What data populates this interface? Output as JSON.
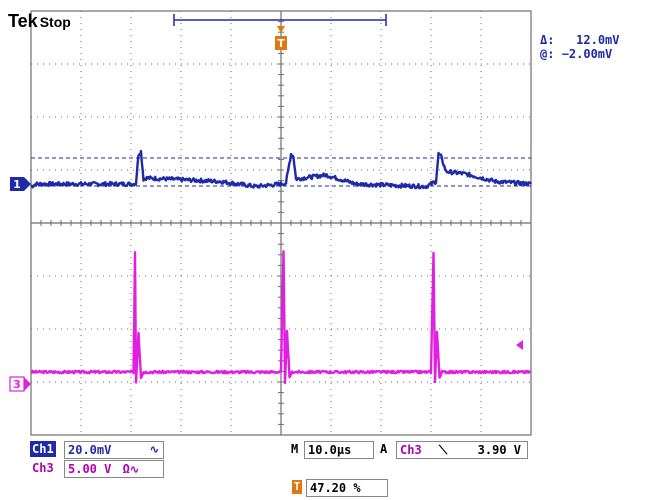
{
  "header": {
    "brand": "Tek",
    "status": "Stop"
  },
  "cursor_readout": {
    "delta_label": "Δ:",
    "delta_value": "12.0mV",
    "at_label": "@:",
    "at_value": "−2.00mV"
  },
  "markers": {
    "ch1_marker": "1",
    "ch3_marker": "3",
    "trigger_marker": "T",
    "trigger_level_marker": "◂"
  },
  "colors": {
    "ch1": "#1e2aa8",
    "ch3": "#e020e0",
    "trigger": "#e07810",
    "grid": "#6e6e6e"
  },
  "bottom": {
    "ch1": {
      "label": "Ch1",
      "scale": "20.0mV",
      "coupling_icon": "bw-limit-icon"
    },
    "ch3": {
      "label": "Ch3",
      "scale": "5.00 V",
      "coupling": "Ω"
    },
    "timebase": {
      "prefix": "M",
      "value": "10.0µs"
    },
    "trigger": {
      "mode": "A",
      "source": "Ch3",
      "slope": "falling-edge-icon",
      "level": "3.90 V"
    },
    "trigger_position": {
      "value": "47.20 %"
    }
  },
  "chart_data": {
    "type": "line",
    "grid": true,
    "time_per_div_us": 10,
    "divisions_x": 10,
    "divisions_y": 8,
    "series": [
      {
        "name": "Ch1",
        "scale_per_div": "20.0mV",
        "description_points_div": [
          [
            0,
            -0.05
          ],
          [
            0.1,
            0
          ],
          [
            2.05,
            0
          ],
          [
            2.1,
            0.02
          ],
          [
            2.15,
            0.6
          ],
          [
            2.2,
            0.65
          ],
          [
            2.25,
            0.1
          ],
          [
            2.3,
            0.12
          ],
          [
            3.8,
            0.05
          ],
          [
            4.5,
            -0.05
          ],
          [
            5.0,
            0.0
          ],
          [
            5.1,
            0.02
          ],
          [
            5.2,
            0.6
          ],
          [
            5.25,
            0.55
          ],
          [
            5.3,
            0.1
          ],
          [
            5.9,
            0.18
          ],
          [
            6.5,
            0.0
          ],
          [
            7.9,
            -0.05
          ],
          [
            8.0,
            0.0
          ],
          [
            8.1,
            0.05
          ],
          [
            8.15,
            0.6
          ],
          [
            8.2,
            0.55
          ],
          [
            8.3,
            0.25
          ],
          [
            8.7,
            0.2
          ],
          [
            9.3,
            0.05
          ],
          [
            10,
            0
          ]
        ]
      },
      {
        "name": "Ch3",
        "scale_per_div": "5.00 V",
        "description_points_div": [
          [
            0,
            0
          ],
          [
            2.0,
            0
          ],
          [
            2.05,
            0
          ],
          [
            2.08,
            2.4
          ],
          [
            2.1,
            -0.2
          ],
          [
            2.15,
            0.8
          ],
          [
            2.2,
            -0.1
          ],
          [
            2.25,
            0
          ],
          [
            5.0,
            0
          ],
          [
            5.05,
            2.4
          ],
          [
            5.08,
            -0.2
          ],
          [
            5.12,
            0.8
          ],
          [
            5.17,
            -0.1
          ],
          [
            5.22,
            0
          ],
          [
            8.0,
            0
          ],
          [
            8.05,
            2.4
          ],
          [
            8.08,
            -0.2
          ],
          [
            8.12,
            0.8
          ],
          [
            8.17,
            -0.1
          ],
          [
            8.22,
            0
          ],
          [
            10,
            0
          ]
        ]
      }
    ]
  }
}
